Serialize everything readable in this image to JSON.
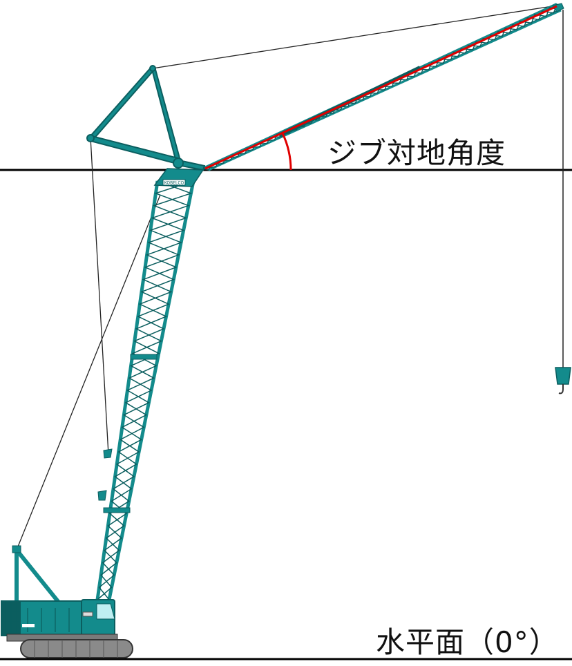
{
  "labels": {
    "jib_angle": "ジブ対地角度",
    "horizontal_plane": "水平面（0°）"
  },
  "boom_logo": "KOBELCO",
  "colors": {
    "crane_body": "#138b8c",
    "crane_dark": "#0b5e5f",
    "angle_marker": "#e00000",
    "line": "#000000",
    "window": "#bfeff2"
  }
}
